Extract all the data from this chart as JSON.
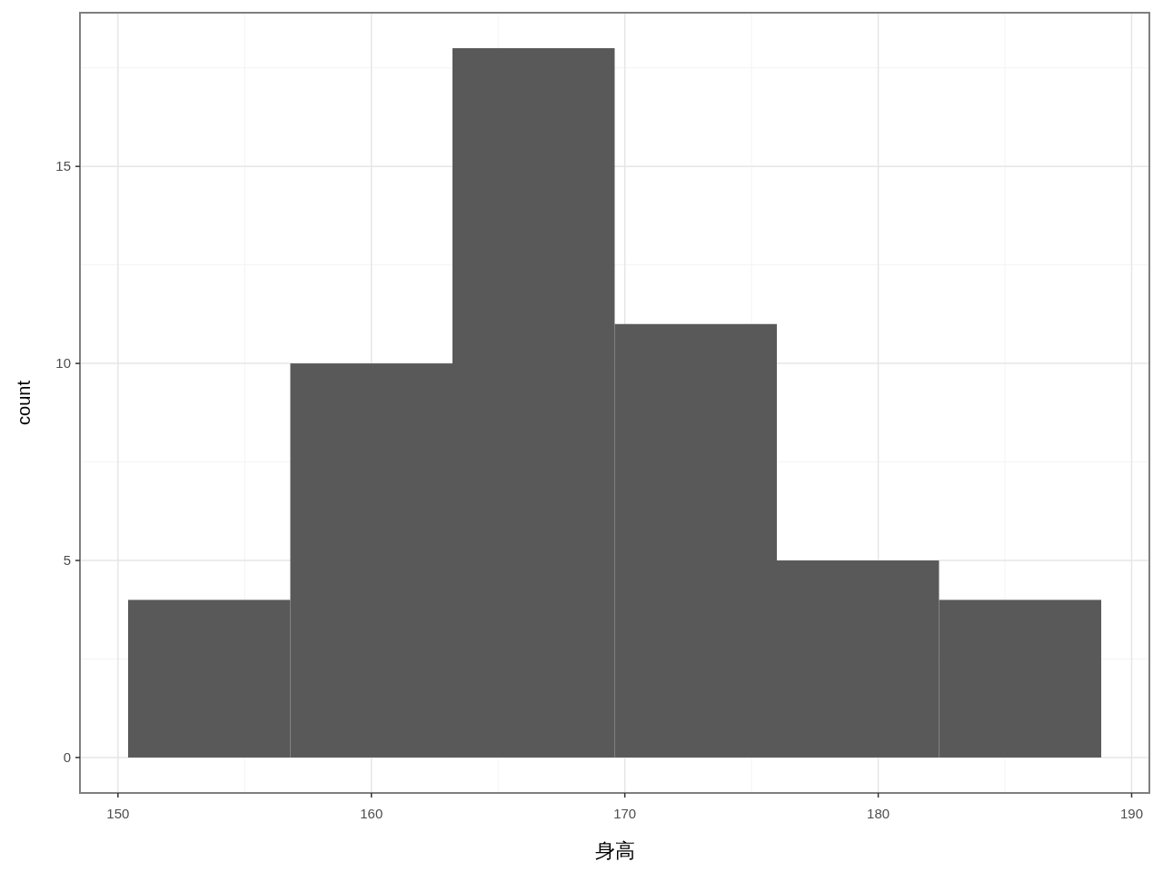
{
  "chart_data": {
    "type": "histogram",
    "xlabel": "身高",
    "ylabel": "count",
    "bins": [
      150.4,
      156.8,
      163.2,
      169.6,
      176.0,
      182.4,
      188.8
    ],
    "values": [
      4,
      10,
      18,
      11,
      5,
      4
    ],
    "color": "#595959",
    "xlim": [
      148.5,
      190.7
    ],
    "ylim": [
      -0.9,
      18.9
    ],
    "xticks": [
      150,
      160,
      170,
      180,
      190
    ],
    "yticks": [
      0,
      5,
      10,
      15
    ],
    "grid": true
  }
}
